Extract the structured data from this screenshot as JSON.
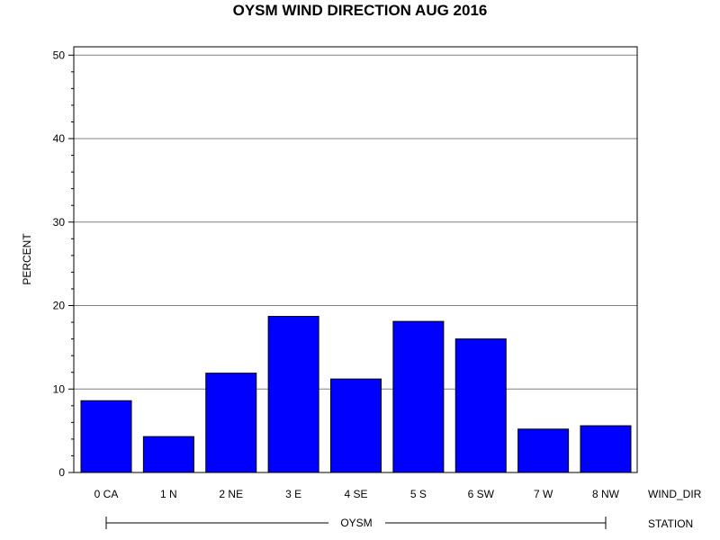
{
  "chart_data": {
    "type": "bar",
    "title": "OYSM WIND DIRECTION AUG 2016",
    "ylabel": "PERCENT",
    "xlabel": "WIND_DIR",
    "group_axis_label": "STATION",
    "group_label": "OYSM",
    "categories": [
      "0 CA",
      "1 N",
      "2 NE",
      "3 E",
      "4 SE",
      "5 S",
      "6 SW",
      "7 W",
      "8 NW"
    ],
    "series": [
      {
        "values": [
          8.6,
          4.3,
          11.9,
          18.7,
          11.2,
          18.1,
          16.0,
          5.2,
          5.6
        ]
      }
    ],
    "ylim": [
      0,
      51
    ],
    "yticks": [
      0,
      10,
      20,
      30,
      40,
      50
    ],
    "grid": true,
    "bar_color": "#0000FF",
    "bar_edge_color": "#000000"
  }
}
